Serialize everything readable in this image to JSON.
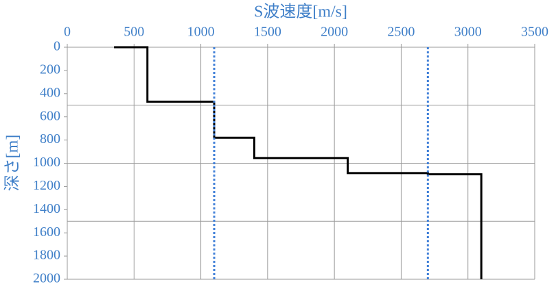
{
  "chart_data": {
    "type": "line",
    "x_label": "S波速度[m/s]",
    "y_label": "深さ[m]",
    "xlim": [
      0,
      3500
    ],
    "xticks": [
      0,
      500,
      1000,
      1500,
      2000,
      2500,
      3000,
      3500
    ],
    "ylim": [
      0,
      2000
    ],
    "yticks": [
      0,
      200,
      400,
      600,
      800,
      1000,
      1200,
      1400,
      1600,
      1800,
      2000
    ],
    "y_inverted": true,
    "x_axis_position": "top",
    "x_gridlines": [
      0,
      500,
      1000,
      1500,
      2000,
      2500,
      3000,
      3500
    ],
    "y_gridlines": [
      0,
      500,
      1000,
      1500,
      2000
    ],
    "series": [
      {
        "color": "#000000",
        "style": "solid",
        "x": [
          350,
          600,
          600,
          1100,
          1100,
          1400,
          1400,
          2100,
          2100,
          2700,
          2700,
          3100,
          3100
        ],
        "values": [
          0,
          0,
          470,
          470,
          780,
          780,
          955,
          955,
          1085,
          1085,
          1095,
          1095,
          2000
        ]
      },
      {
        "color": "#3f7fd8",
        "style": "dotted",
        "x": [
          1100,
          1100
        ],
        "values": [
          0,
          2000
        ]
      },
      {
        "color": "#3f7fd8",
        "style": "dotted",
        "x": [
          2700,
          2700
        ],
        "values": [
          0,
          2000
        ]
      }
    ]
  }
}
